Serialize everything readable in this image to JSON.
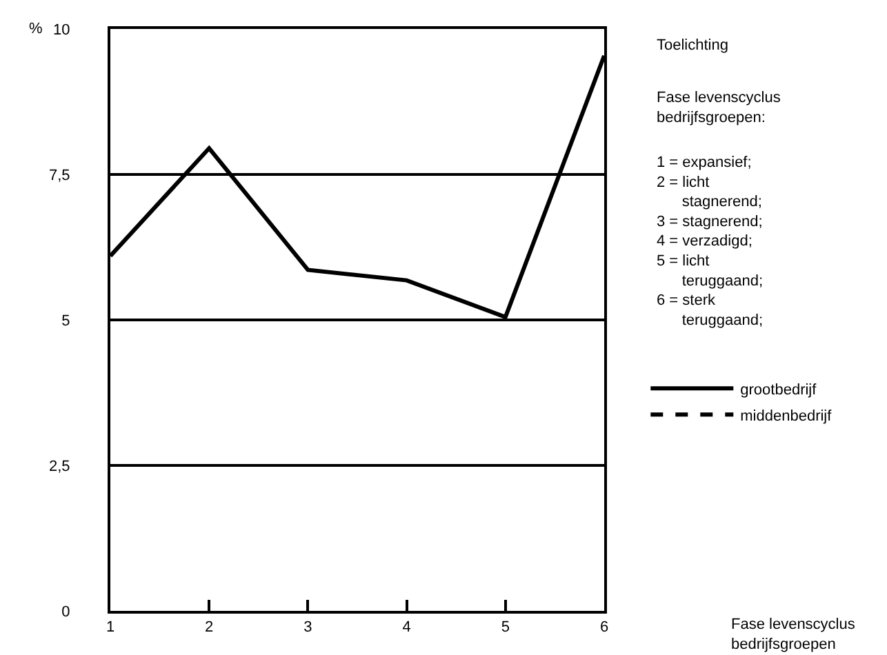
{
  "chart_data": {
    "type": "line",
    "ylabel": "%",
    "x": [
      1,
      2,
      3,
      4,
      5,
      6
    ],
    "series": [
      {
        "name": "grootbedrijf",
        "color": "#000000",
        "values": [
          6.1,
          7.95,
          5.86,
          5.68,
          5.05,
          9.54
        ],
        "line_style": "solid"
      },
      {
        "name": "middenbedrijf",
        "color": "#000000",
        "values": [
          null,
          null,
          null,
          null,
          null,
          null
        ],
        "line_style": "dashed"
      }
    ],
    "xlim": [
      1,
      6
    ],
    "xticks": [
      1,
      2,
      3,
      4,
      5,
      6
    ],
    "ylim": [
      0,
      10
    ],
    "yticks": [
      0,
      {
        "value": 2.5,
        "label": "2,5"
      },
      5,
      {
        "value": 7.5,
        "label": "7,5"
      },
      10
    ],
    "grid": "y",
    "legend": "right",
    "marker": "none",
    "annotations": [
      "Toelichting",
      "Fase levenscyclus\nbedrijfsgroepen:",
      "1 = expansief;\n2 = licht\n      stagnerend;\n3 = stagnerend;\n4 = verzadigd;\n5 = licht\n      teruggaand;\n6 = sterk\n      teruggaand;",
      "Fase levenscyclus\nbedrijfsgroepen"
    ]
  }
}
